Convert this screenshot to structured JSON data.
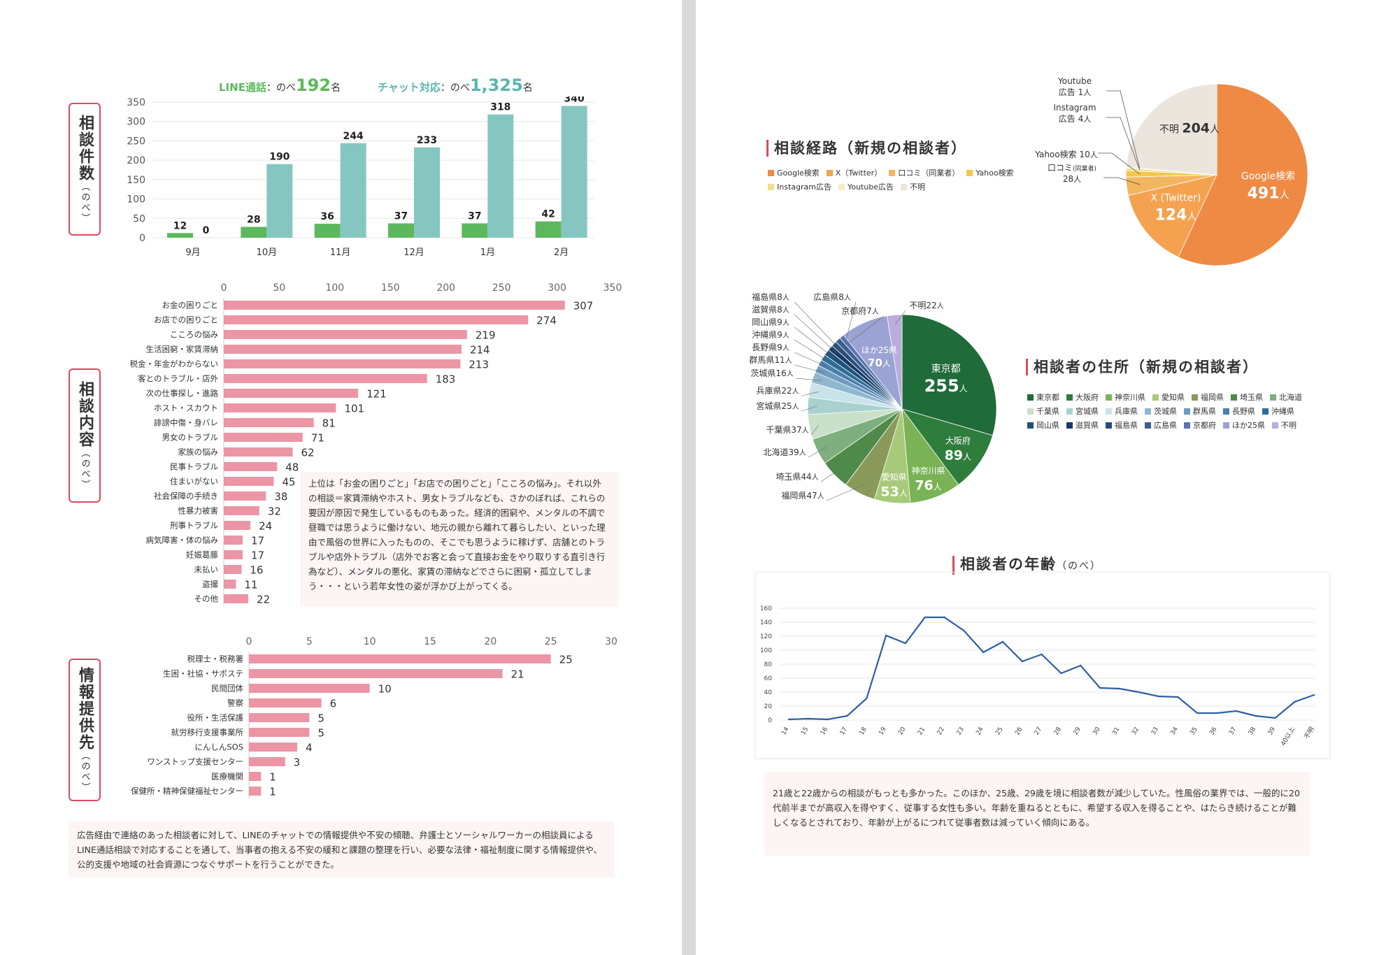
{
  "left_page": {
    "header": {
      "line_label": "LINE通話",
      "line_prefix": "：のべ",
      "line_count": "192",
      "line_suffix": "名",
      "chat_label": "チャット対応",
      "chat_prefix": "：のべ",
      "chat_count": "1,325",
      "chat_suffix": "名"
    },
    "label_consult_count": "相談件数",
    "label_consult_content": "相談内容",
    "label_info_provider": "情報提供先",
    "label_nobe": "（のべ）",
    "content_note": "上位は「お金の困りごと」「お店での困りごと」「こころの悩み」。それ以外の相談＝家賃滞納やホスト、男女トラブルなども、さかのぼれば、これらの要因が原因で発生しているものもあった。経済的困窮や、メンタルの不調で昼職では思うように働けない、地元の親から離れて暮らしたい、といった理由で風俗の世界に入ったものの、そこでも思うように稼げず、店舗とのトラブルや店外トラブル（店外でお客と会って直接お金をやり取りする直引き行為など）、メンタルの悪化、家賃の滞納などでさらに困窮・孤立してしまう・・・という若年女性の姿が浮かび上がってくる。",
    "bottom_note": "広告経由で連絡のあった相談者に対して、LINEのチャットでの情報提供や不安の傾聴、弁護士とソーシャルワーカーの相談員によるLINE通話相談で対応することを通して、当事者の抱える不安の緩和と課題の整理を行い、必要な法律・福祉制度に関する情報提供や、公的支援や地域の社会資源につなぐサポートを行うことができた。"
  },
  "right_page": {
    "route_title": "相談経路（新規の相談者）",
    "residence_title": "相談者の住所（新規の相談者）",
    "age_title": "相談者の年齢",
    "age_title_suffix": "（のべ）",
    "age_note": "21歳と22歳からの相談がもっとも多かった。このほか、25歳、29歳を境に相談者数が減少していた。性風俗の業界では、一般的に20代前半までが高収入を得やすく、従事する女性も多い。年齢を重ねるとともに、希望する収入を得ることや、はたらき続けることが難しくなるとされており、年齢が上がるにつれて従事者数は減っていく傾向にある。"
  },
  "colors": {
    "accent": "#d94b5f",
    "line_green": "#5cb85c",
    "chat_teal": "#86c6c1",
    "bar_pink": "#ec95a5",
    "age_line": "#2e5fa3"
  },
  "chart_data": [
    {
      "id": "monthly",
      "type": "bar",
      "categories": [
        "9月",
        "10月",
        "11月",
        "12月",
        "1月",
        "2月"
      ],
      "series": [
        {
          "name": "LINE通話",
          "values": [
            12,
            28,
            36,
            37,
            37,
            42
          ]
        },
        {
          "name": "チャット対応",
          "values": [
            0,
            190,
            244,
            233,
            318,
            340
          ]
        }
      ],
      "ylim": [
        0,
        350
      ],
      "yticks": [
        0,
        50,
        100,
        150,
        200,
        250,
        300,
        350
      ]
    },
    {
      "id": "content",
      "type": "bar",
      "orientation": "horizontal",
      "categories": [
        "お金の困りごと",
        "お店での困りごと",
        "こころの悩み",
        "生活困窮・家賃滞納",
        "税金・年金がわからない",
        "客とのトラブル・店外",
        "次の仕事探し・進路",
        "ホスト・スカウト",
        "誹謗中傷・身バレ",
        "男女のトラブル",
        "家族の悩み",
        "民事トラブル",
        "住まいがない",
        "社会保障の手続き",
        "性暴力被害",
        "刑事トラブル",
        "病気障害・体の悩み",
        "妊娠葛藤",
        "未払い",
        "盗撮",
        "その他"
      ],
      "values": [
        307,
        274,
        219,
        214,
        213,
        183,
        121,
        101,
        81,
        71,
        62,
        48,
        45,
        38,
        32,
        24,
        17,
        17,
        16,
        11,
        22
      ],
      "xlim": [
        0,
        350
      ],
      "xticks": [
        0,
        50,
        100,
        150,
        200,
        250,
        300,
        350
      ]
    },
    {
      "id": "info",
      "type": "bar",
      "orientation": "horizontal",
      "categories": [
        "税理士・税務署",
        "生困・社協・サポステ",
        "民間団体",
        "警察",
        "役所・生活保護",
        "就労移行支援事業所",
        "にんしんSOS",
        "ワンストップ支援センター",
        "医療機関",
        "保健所・精神保健福祉センター"
      ],
      "values": [
        25,
        21,
        10,
        6,
        5,
        5,
        4,
        3,
        1,
        1
      ],
      "xlim": [
        0,
        30
      ],
      "xticks": [
        0,
        5,
        10,
        15,
        20,
        25,
        30
      ]
    },
    {
      "id": "route",
      "type": "pie",
      "title": "相談経路（新規の相談者）",
      "labels": [
        "Google検索",
        "X（Twitter）",
        "口コミ（同業者）",
        "Yahoo検索",
        "Instagram広告",
        "Youtube広告",
        "不明"
      ],
      "values": [
        491,
        124,
        28,
        10,
        4,
        1,
        204
      ],
      "colors": [
        "#ef8a44",
        "#f4a24f",
        "#f3b660",
        "#f2c84b",
        "#f1e08a",
        "#f5ecc2",
        "#ece5de"
      ],
      "slice_labels": [
        {
          "name": "Google検索",
          "count": "491",
          "unit": "人"
        },
        {
          "name": "X (Twitter)",
          "count": "124",
          "unit": "人"
        },
        {
          "name": "口コミ",
          "sub": "(同業者)",
          "count": "28",
          "unit": "人"
        },
        {
          "name": "Yahoo検索",
          "count": "10",
          "unit": "人"
        },
        {
          "name": "Instagram",
          "sub": "広告",
          "count": "4",
          "unit": "人"
        },
        {
          "name": "Youtube",
          "sub": "広告",
          "count": "1",
          "unit": "人"
        },
        {
          "name": "不明",
          "count": "204",
          "unit": "人"
        }
      ]
    },
    {
      "id": "residence",
      "type": "pie",
      "title": "相談者の住所（新規の相談者）",
      "labels": [
        "東京都",
        "大阪府",
        "神奈川県",
        "愛知県",
        "福岡県",
        "埼玉県",
        "北海道",
        "千葉県",
        "宮城県",
        "兵庫県",
        "茨城県",
        "群馬県",
        "長野県",
        "沖縄県",
        "岡山県",
        "滋賀県",
        "福島県",
        "広島県",
        "京都府",
        "ほか25県",
        "不明"
      ],
      "values": [
        255,
        89,
        76,
        53,
        47,
        44,
        39,
        37,
        25,
        22,
        16,
        11,
        9,
        9,
        9,
        8,
        8,
        8,
        7,
        70,
        22
      ],
      "colors": [
        "#1f6b3a",
        "#2f7d3c",
        "#7ab356",
        "#a7c97a",
        "#8a9a5b",
        "#4f8a4a",
        "#7fae7f",
        "#c9e0c9",
        "#a8d1cf",
        "#c9e3ea",
        "#8fb8cf",
        "#6f9bc0",
        "#4a7fae",
        "#2f6c95",
        "#1f5276",
        "#163a66",
        "#2a4c7a",
        "#3b5f8f",
        "#5a73b0",
        "#9aa3d3",
        "#b9addb"
      ],
      "unit": "人"
    },
    {
      "id": "age",
      "type": "line",
      "title": "相談者の年齢（のべ）",
      "x": [
        "14",
        "15",
        "16",
        "17",
        "18",
        "19",
        "20",
        "21",
        "22",
        "23",
        "24",
        "25",
        "26",
        "27",
        "28",
        "29",
        "30",
        "31",
        "32",
        "33",
        "34",
        "35",
        "36",
        "37",
        "38",
        "39",
        "40以上",
        "不明"
      ],
      "values": [
        1,
        2,
        1,
        6,
        31,
        121,
        110,
        147,
        147,
        128,
        97,
        112,
        84,
        94,
        67,
        78,
        46,
        45,
        40,
        34,
        33,
        10,
        10,
        13,
        6,
        3,
        26,
        36
      ],
      "ylim": [
        0,
        160
      ],
      "yticks": [
        0,
        20,
        40,
        60,
        80,
        100,
        120,
        140,
        160
      ]
    }
  ]
}
